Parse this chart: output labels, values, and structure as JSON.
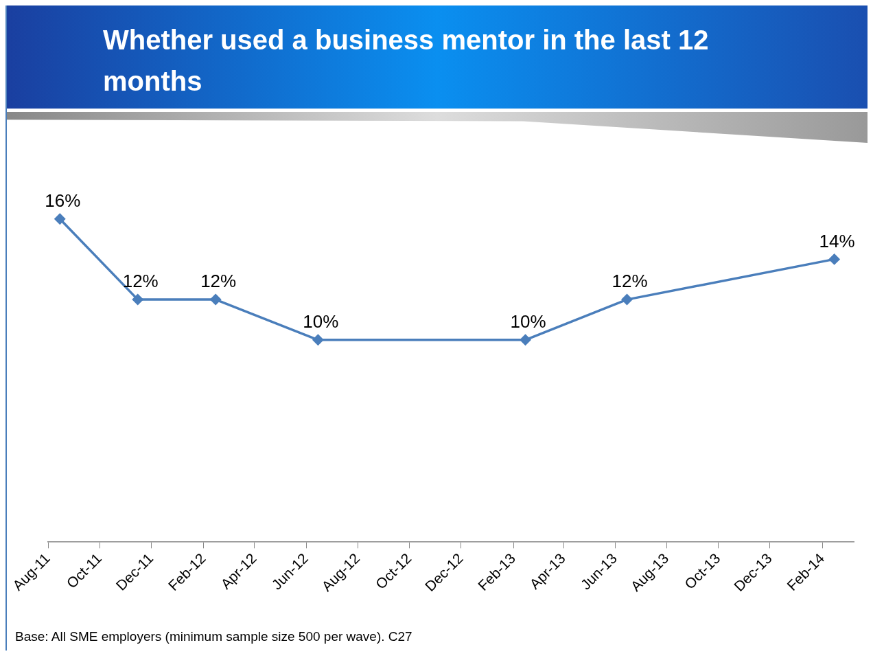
{
  "chart_data": {
    "type": "line",
    "title": "Whether used a business mentor in the last 12 months",
    "x": [
      "2011-08-15",
      "2011-11-15",
      "2012-02-15",
      "2012-06-15",
      "2013-02-15",
      "2013-06-15",
      "2014-02-15"
    ],
    "values": [
      16,
      12,
      12,
      10,
      10,
      12,
      14
    ],
    "value_labels": [
      "16%",
      "12%",
      "12%",
      "10%",
      "10%",
      "12%",
      "14%"
    ],
    "color": "#4a7ebb",
    "marker": "diamond",
    "xlim": [
      "2011-08-01",
      "2014-03-10"
    ],
    "xticks": [
      {
        "value": "2011-08-01",
        "label": "Aug-11"
      },
      {
        "value": "2011-10-01",
        "label": "Oct-11"
      },
      {
        "value": "2011-12-01",
        "label": "Dec-11"
      },
      {
        "value": "2012-02-01",
        "label": "Feb-12"
      },
      {
        "value": "2012-04-01",
        "label": "Apr-12"
      },
      {
        "value": "2012-06-01",
        "label": "Jun-12"
      },
      {
        "value": "2012-08-01",
        "label": "Aug-12"
      },
      {
        "value": "2012-10-01",
        "label": "Oct-12"
      },
      {
        "value": "2012-12-01",
        "label": "Dec-12"
      },
      {
        "value": "2013-02-01",
        "label": "Feb-13"
      },
      {
        "value": "2013-04-01",
        "label": "Apr-13"
      },
      {
        "value": "2013-06-01",
        "label": "Jun-13"
      },
      {
        "value": "2013-08-01",
        "label": "Aug-13"
      },
      {
        "value": "2013-10-01",
        "label": "Oct-13"
      },
      {
        "value": "2013-12-01",
        "label": "Dec-13"
      },
      {
        "value": "2014-02-01",
        "label": "Feb-14"
      }
    ],
    "tick_labels": "x",
    "grid": false,
    "legend": false,
    "annotations": [
      "Base: All SME employers (minimum sample size 500 per wave). C27"
    ]
  }
}
